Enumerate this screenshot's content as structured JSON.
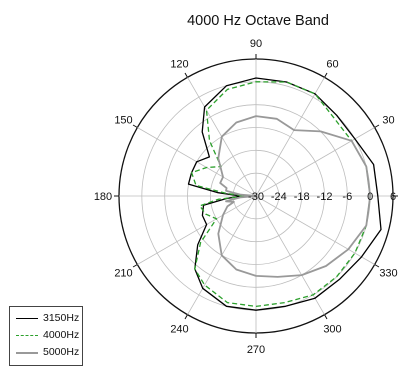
{
  "chart_data": {
    "type": "polar-line",
    "title": "4000 Hz Octave Band",
    "angle_unit": "degrees",
    "angle_ticks": [
      0,
      30,
      60,
      90,
      120,
      150,
      180,
      210,
      240,
      270,
      300,
      330
    ],
    "radial_ticks": [
      -30,
      -24,
      -18,
      -12,
      -6,
      0,
      6
    ],
    "rlim": [
      -30,
      6
    ],
    "grid": true,
    "legend_position": "bottom-left",
    "series": [
      {
        "name": "3150Hz",
        "color": "#000000",
        "dash": "solid",
        "angles": [
          0,
          15,
          30,
          45,
          60,
          75,
          90,
          105,
          120,
          130,
          140,
          150,
          160,
          170,
          175,
          180,
          185,
          190,
          200,
          210,
          220,
          230,
          240,
          255,
          270,
          285,
          300,
          315,
          330,
          345
        ],
        "values": [
          2,
          2,
          0,
          0,
          1,
          1,
          1,
          0,
          -3,
          -8,
          -14,
          -12,
          -12,
          -12,
          -20,
          -26,
          -22,
          -16,
          -15,
          -15,
          -10,
          -5,
          -2,
          0,
          0,
          0,
          1,
          1,
          2,
          4
        ]
      },
      {
        "name": "4000Hz",
        "color": "#2ca02c",
        "dash": "dashed",
        "angles": [
          0,
          15,
          30,
          45,
          60,
          75,
          90,
          105,
          120,
          130,
          140,
          150,
          160,
          170,
          175,
          180,
          185,
          190,
          200,
          210,
          220,
          230,
          240,
          255,
          270,
          285,
          300,
          315,
          330,
          345
        ],
        "values": [
          0,
          0,
          -1,
          -1,
          1,
          1,
          0,
          -1,
          -4,
          -11,
          -18,
          -15,
          -12,
          -14,
          -22,
          -27,
          -20,
          -15,
          -16,
          -18,
          -11,
          -5,
          -3,
          -1,
          -1,
          -1,
          0,
          0,
          0,
          0
        ]
      },
      {
        "name": "5000Hz",
        "color": "#999999",
        "dash": "solid",
        "angles": [
          0,
          15,
          30,
          45,
          60,
          75,
          90,
          105,
          120,
          135,
          150,
          160,
          165,
          170,
          175,
          180,
          185,
          190,
          195,
          200,
          210,
          225,
          240,
          255,
          270,
          285,
          300,
          315,
          330,
          345
        ],
        "values": [
          0,
          0,
          -1,
          -6,
          -10,
          -9,
          -9,
          -10,
          -12,
          -16,
          -20,
          -20,
          -22,
          -22,
          -26,
          -30,
          -26,
          -22,
          -24,
          -22,
          -20,
          -16,
          -12,
          -10,
          -9,
          -8,
          -6,
          -4,
          -2,
          0
        ]
      }
    ]
  }
}
